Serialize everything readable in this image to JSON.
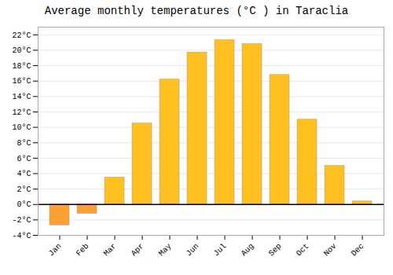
{
  "chart_data": {
    "type": "bar",
    "title": "Average monthly temperatures (°C ) in Taraclia",
    "categories": [
      "Jan",
      "Feb",
      "Mar",
      "Apr",
      "May",
      "Jun",
      "Jul",
      "Aug",
      "Sep",
      "Oct",
      "Nov",
      "Dec"
    ],
    "values": [
      -2.7,
      -1.2,
      3.5,
      10.5,
      16.2,
      19.7,
      21.3,
      20.8,
      16.8,
      11.0,
      5.0,
      0.4
    ],
    "colors": [
      "#FFA030",
      "#FFA030",
      "#FFC020",
      "#FFC020",
      "#FFC020",
      "#FFC020",
      "#FFC020",
      "#FFC020",
      "#FFC020",
      "#FFC020",
      "#FFC020",
      "#FFC020"
    ],
    "ylim": [
      -4,
      23
    ],
    "yticks": [
      {
        "value": -4,
        "label": "-4°C"
      },
      {
        "value": -2,
        "label": "-2°C"
      },
      {
        "value": 0,
        "label": "0°C"
      },
      {
        "value": 2,
        "label": "2°C"
      },
      {
        "value": 4,
        "label": "4°C"
      },
      {
        "value": 6,
        "label": "6°C"
      },
      {
        "value": 8,
        "label": "8°C"
      },
      {
        "value": 10,
        "label": "10°C"
      },
      {
        "value": 12,
        "label": "12°C"
      },
      {
        "value": 14,
        "label": "14°C"
      },
      {
        "value": 16,
        "label": "16°C"
      },
      {
        "value": 18,
        "label": "18°C"
      },
      {
        "value": 20,
        "label": "20°C"
      },
      {
        "value": 22,
        "label": "22°C"
      }
    ],
    "grid": true
  }
}
